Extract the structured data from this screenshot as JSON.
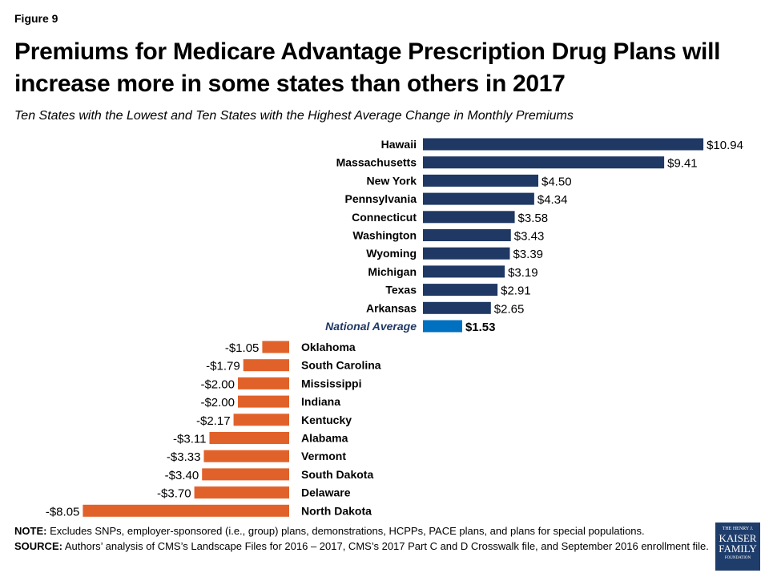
{
  "header": {
    "figure_label": "Figure 9",
    "title": "Premiums for Medicare Advantage Prescription Drug Plans will increase more in some states than others in 2017",
    "subtitle": "Ten States with the Lowest and Ten States with the Highest Average Change in Monthly Premiums"
  },
  "chart_data": {
    "type": "bar",
    "orientation": "horizontal",
    "unit": "$ change in monthly premium",
    "categories": [
      "Hawaii",
      "Massachusetts",
      "New York",
      "Pennsylvania",
      "Connecticut",
      "Washington",
      "Wyoming",
      "Michigan",
      "Texas",
      "Arkansas",
      "National Average",
      "Oklahoma",
      "South Carolina",
      "Mississippi",
      "Indiana",
      "Kentucky",
      "Alabama",
      "Vermont",
      "South Dakota",
      "Delaware",
      "North Dakota"
    ],
    "values": [
      10.94,
      9.41,
      4.5,
      4.34,
      3.58,
      3.43,
      3.39,
      3.19,
      2.91,
      2.65,
      1.53,
      -1.05,
      -1.79,
      -2.0,
      -2.0,
      -2.17,
      -3.11,
      -3.33,
      -3.4,
      -3.7,
      -8.05
    ],
    "data_labels": [
      "$10.94",
      "$9.41",
      "$4.50",
      "$4.34",
      "$3.58",
      "$3.43",
      "$3.39",
      "$3.19",
      "$2.91",
      "$2.65",
      "$1.53",
      "-$1.05",
      "-$1.79",
      "-$2.00",
      "-$2.00",
      "-$2.17",
      "-$3.11",
      "-$3.33",
      "-$3.40",
      "-$3.70",
      "-$8.05"
    ],
    "colors": {
      "increase": "#1f3864",
      "national_average": "#0070c0",
      "decrease": "#e0622a"
    },
    "highlight": "National Average",
    "grid": false,
    "legend": "none"
  },
  "footer": {
    "note_label": "NOTE:",
    "note": " Excludes SNPs, employer-sponsored  (i.e., group) plans, demonstrations,  HCPPs, PACE plans, and plans for special populations.",
    "source_label": "SOURCE:",
    "source": "  Authors’ analysis of CMS’s Landscape Files for 2016 – 2017, CMS’s 2017 Part C and D Crosswalk file, and September  2016 enrollment  file.",
    "logo": [
      "THE HENRY J.",
      "KAISER",
      "FAMILY",
      "FOUNDATION"
    ]
  }
}
